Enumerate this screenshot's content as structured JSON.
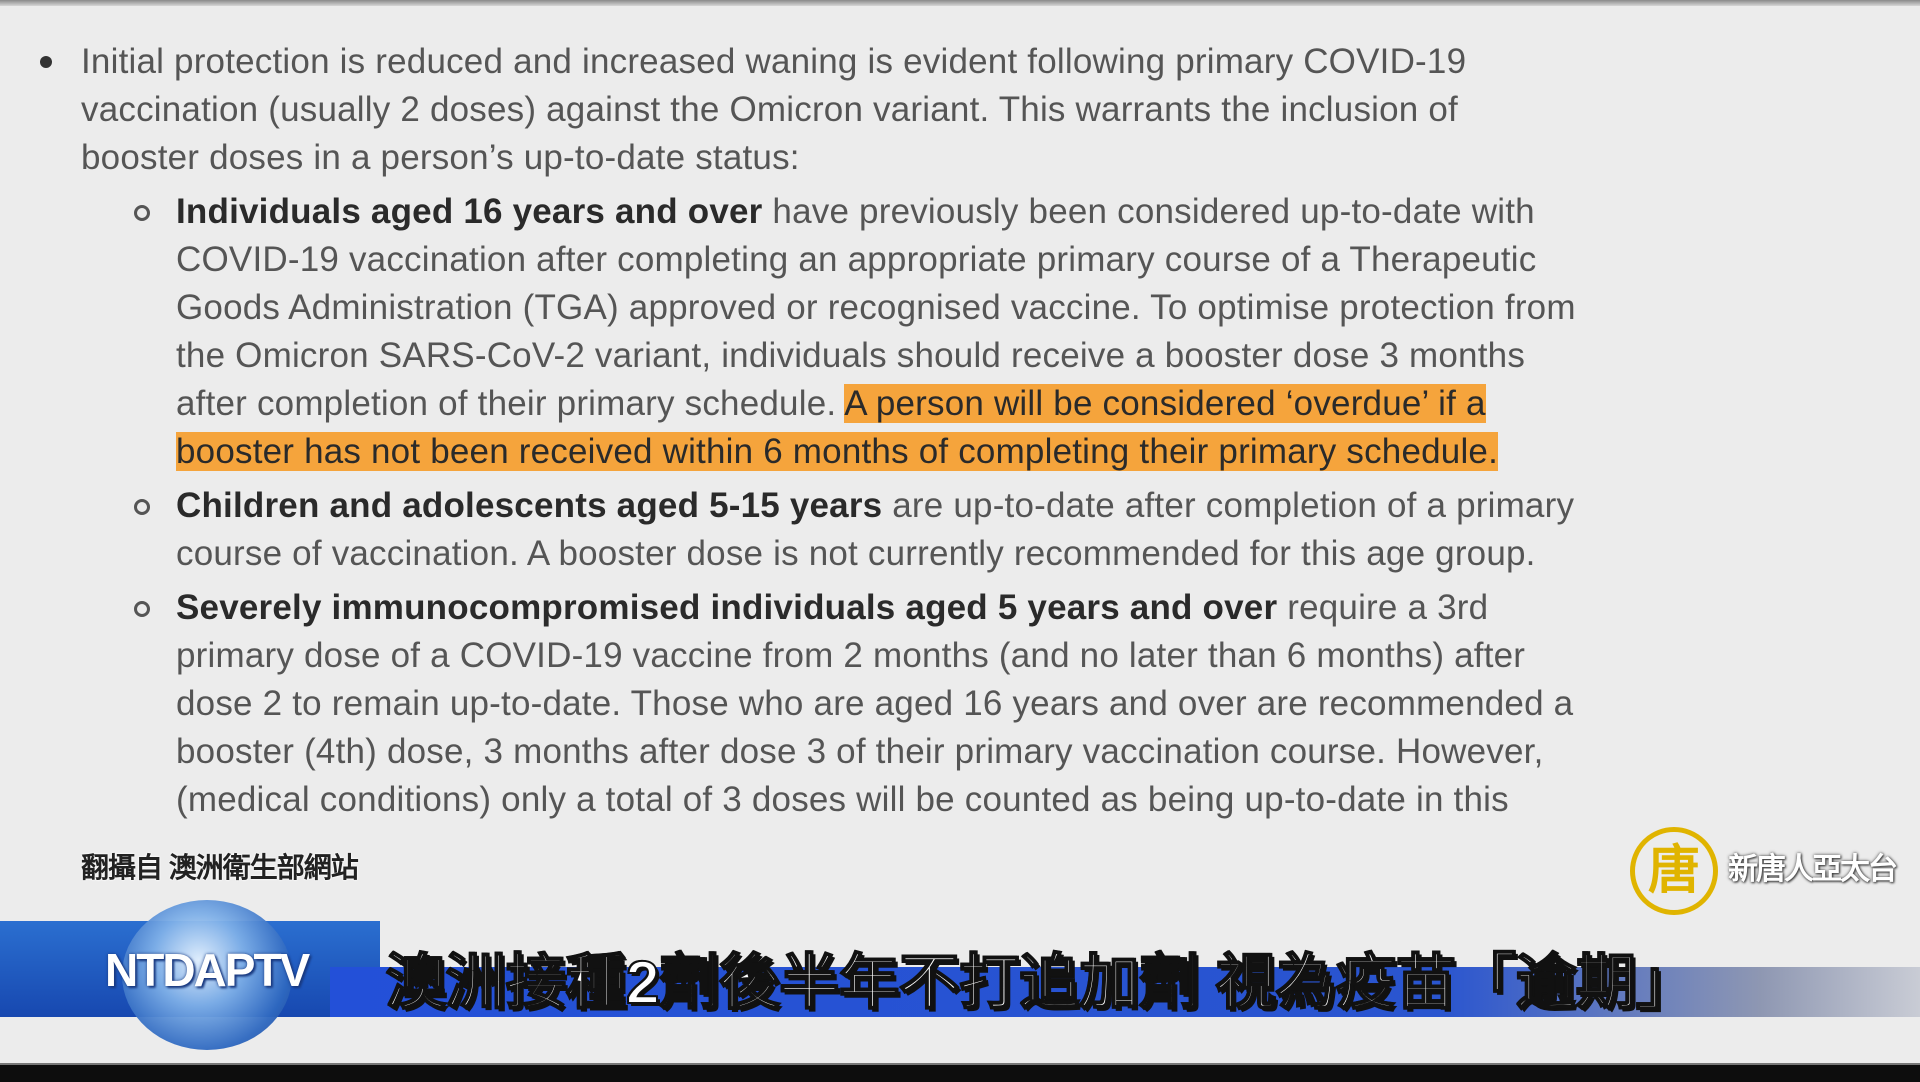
{
  "document": {
    "intro_bullet": {
      "line1": "Initial protection is reduced and increased waning is evident following primary COVID-19",
      "line2": "vaccination (usually 2 doses) against the Omicron variant. This warrants the inclusion of",
      "line3": "booster doses in a person’s up-to-date status:"
    },
    "items": [
      {
        "bold": "Individuals aged 16 years and over",
        "line1_rest": " have previously been considered up-to-date with",
        "line2": "COVID-19 vaccination after completing an appropriate primary course of a Therapeutic",
        "line3": "Goods Administration (TGA) approved or recognised vaccine. To optimise protection from",
        "line4": "the Omicron SARS-CoV-2 variant, individuals should receive a booster dose 3 months",
        "line5": "after completion of their primary schedule. ",
        "highlight1": "A person will be considered ‘overdue’ if a",
        "highlight2": "booster has not been received within 6 months of completing their primary schedule."
      },
      {
        "bold": "Children and adolescents aged 5-15 years",
        "line1_rest": " are up-to-date after completion of a primary",
        "line2": "course of vaccination. A booster dose is not currently recommended for this age group."
      },
      {
        "bold": "Severely immunocompromised individuals aged 5 years and over",
        "line1_rest": " require a 3rd",
        "line2": "primary dose of a COVID-19 vaccine from 2 months (and no later than 6 months) after",
        "line3": "dose 2 to remain up-to-date. Those who are aged 16 years and over are recommended a",
        "line4": "booster (4th) dose, 3 months after dose 3 of their primary vaccination course. However,",
        "line5": "(medical conditions) only a total of 3 doses will be counted as being up-to-date in this"
      }
    ],
    "highlight_color": "#f5a43c"
  },
  "overlay": {
    "source_caption": "翻攝自 澳洲衛生部網站",
    "channel_logo_char": "唐",
    "channel_logo_text": "新唐人亞太台",
    "station_logo": "NTDAPTV",
    "headline": "澳洲接種2劑後半年不打追加劑  視為疫苗「逾期」",
    "banner_color": "#2350d8",
    "logo_color": "#e0b400"
  }
}
